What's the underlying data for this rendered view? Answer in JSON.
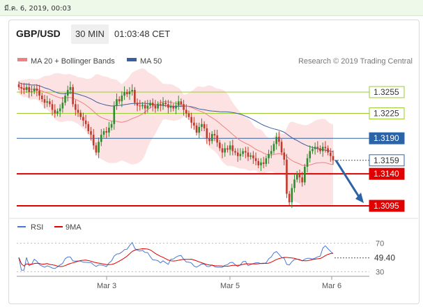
{
  "top_bar": {
    "datetime": "มี.ค. 6, 2019, 00:03"
  },
  "header": {
    "symbol": "GBP/USD",
    "timeframe": "30 MIN",
    "time": "01:03:48 CET"
  },
  "legend": {
    "ma20": "MA 20 + Bollinger Bands",
    "ma50": "MA 50",
    "credit": "Research © 2019 Trading Central"
  },
  "colors": {
    "bull": "#2e8b2e",
    "bear": "#c0392b",
    "ma20": "#f08080",
    "ma50": "#3a5fa0",
    "band": "#fbd8d8",
    "support": "#e00000",
    "resistance_green": "#9acd32",
    "resistance_blue": "#2b63a8",
    "arrow": "#2b63a8",
    "rsi": "#4a78d0",
    "rsi_ma": "#e00000"
  },
  "chart_data": [
    {
      "type": "candlestick",
      "ylim": [
        1.307,
        1.329
      ],
      "x_ticks": [
        "Mar 3",
        "Mar 5",
        "Mar 6"
      ],
      "levels": [
        {
          "value": 1.3255,
          "label": "1.3255",
          "kind": "resistance"
        },
        {
          "value": 1.3225,
          "label": "1.3225",
          "kind": "resistance"
        },
        {
          "value": 1.319,
          "label": "1.3190",
          "kind": "pivot"
        },
        {
          "value": 1.3159,
          "label": "1.3159",
          "kind": "last"
        },
        {
          "value": 1.314,
          "label": "1.3140",
          "kind": "support"
        },
        {
          "value": 1.3095,
          "label": "1.3095",
          "kind": "support"
        }
      ],
      "close": [
        1.3262,
        1.326,
        1.3258,
        1.3262,
        1.3255,
        1.3256,
        1.326,
        1.3257,
        1.325,
        1.3245,
        1.324,
        1.3242,
        1.3238,
        1.323,
        1.3225,
        1.3228,
        1.3232,
        1.324,
        1.325,
        1.3258,
        1.3262,
        1.3238,
        1.323,
        1.3226,
        1.322,
        1.3215,
        1.321,
        1.32,
        1.3195,
        1.318,
        1.317,
        1.3185,
        1.3195,
        1.32,
        1.3198,
        1.3205,
        1.321,
        1.3236,
        1.3245,
        1.3242,
        1.325,
        1.3255,
        1.3252,
        1.3256,
        1.3258,
        1.324,
        1.3236,
        1.3235,
        1.3237,
        1.3232,
        1.3236,
        1.324,
        1.3236,
        1.3232,
        1.3238,
        1.3236,
        1.324,
        1.3238,
        1.3233,
        1.3235,
        1.3232,
        1.3236,
        1.3242,
        1.3238,
        1.323,
        1.3225,
        1.322,
        1.3212,
        1.3208,
        1.3198,
        1.3206,
        1.321,
        1.3204,
        1.319,
        1.3186,
        1.3196,
        1.3194,
        1.3184,
        1.3176,
        1.317,
        1.3176,
        1.3174,
        1.318,
        1.3172,
        1.317,
        1.3165,
        1.3168,
        1.3172,
        1.317,
        1.3164,
        1.3166,
        1.3162,
        1.3158,
        1.3152,
        1.3156,
        1.3154,
        1.3162,
        1.3168,
        1.3172,
        1.3182,
        1.3192,
        1.3185,
        1.317,
        1.316,
        1.3112,
        1.31,
        1.312,
        1.3132,
        1.314,
        1.3135,
        1.3128,
        1.315,
        1.3162,
        1.3172,
        1.3175,
        1.3178,
        1.3176,
        1.3172,
        1.3178,
        1.3176,
        1.317,
        1.3165,
        1.3159
      ],
      "series": [
        {
          "name": "MA 20 + Bollinger Bands",
          "values": []
        },
        {
          "name": "MA 50",
          "values": []
        }
      ],
      "forecast": {
        "from": 1.3159,
        "to": 1.3095
      }
    },
    {
      "type": "line",
      "title": "RSI",
      "ylim": [
        20,
        80
      ],
      "y_ticks": [
        "70",
        "30"
      ],
      "last_value": "49.40",
      "series": [
        {
          "name": "RSI",
          "values": []
        },
        {
          "name": "9MA",
          "values": []
        }
      ]
    }
  ]
}
